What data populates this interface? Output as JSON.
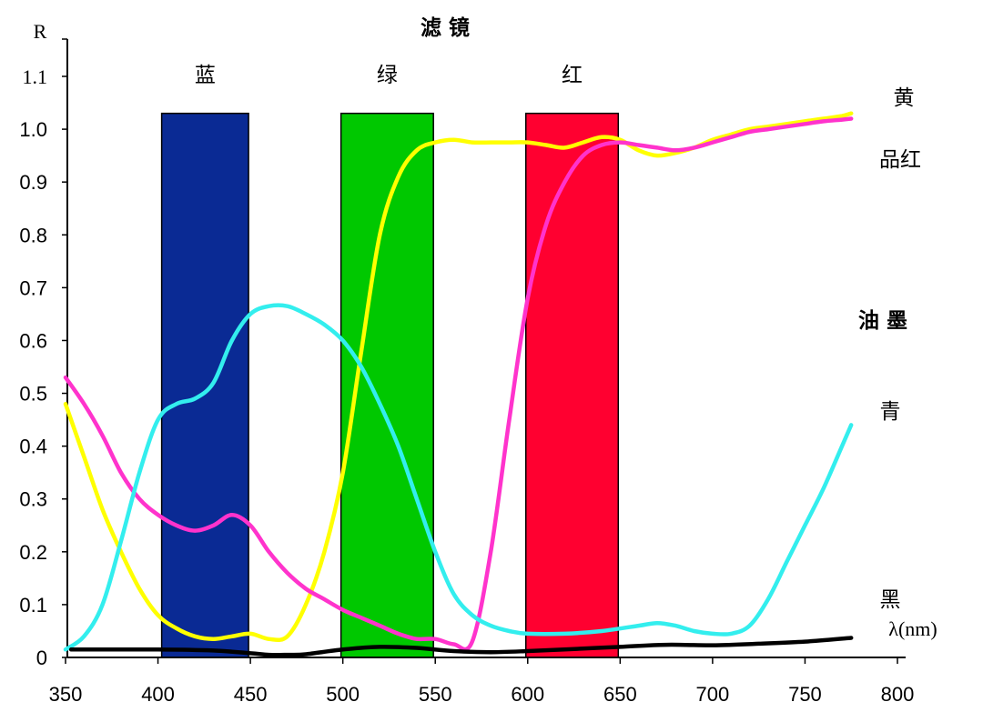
{
  "chart_data": {
    "type": "line",
    "title": "滤 镜",
    "ylabel": "R",
    "xlabel": "λ(nm)",
    "xlim": [
      350,
      800
    ],
    "ylim": [
      0,
      1.1
    ],
    "x_ticks": [
      "350",
      "400",
      "450",
      "500",
      "550",
      "600",
      "650",
      "700",
      "750",
      "800"
    ],
    "y_ticks": [
      "0",
      "0.1",
      "0.2",
      "0.3",
      "0.4",
      "0.5",
      "0.6",
      "0.7",
      "0.8",
      "0.9",
      "1.0",
      "1.1"
    ],
    "grid": false,
    "filters": [
      {
        "name": "蓝",
        "x_start": 402,
        "x_end": 449,
        "top": 1.03,
        "color": "#0a2a94"
      },
      {
        "name": "绿",
        "x_start": 499,
        "x_end": 549,
        "top": 1.03,
        "color": "#00c800"
      },
      {
        "name": "红",
        "x_start": 599,
        "x_end": 649,
        "top": 1.03,
        "color": "#ff0030"
      }
    ],
    "ink_group_label": "油 墨",
    "series": [
      {
        "name": "黄",
        "color": "#ffff00",
        "x": [
          350,
          360,
          370,
          380,
          390,
          400,
          410,
          420,
          430,
          440,
          450,
          460,
          470,
          480,
          490,
          500,
          510,
          520,
          530,
          540,
          550,
          560,
          570,
          580,
          590,
          600,
          610,
          620,
          630,
          640,
          650,
          660,
          670,
          680,
          690,
          700,
          710,
          720,
          730,
          740,
          750,
          760,
          770,
          775
        ],
        "y": [
          0.48,
          0.38,
          0.28,
          0.2,
          0.13,
          0.08,
          0.055,
          0.04,
          0.035,
          0.04,
          0.045,
          0.035,
          0.04,
          0.1,
          0.2,
          0.35,
          0.58,
          0.8,
          0.91,
          0.96,
          0.975,
          0.98,
          0.975,
          0.975,
          0.975,
          0.975,
          0.97,
          0.965,
          0.975,
          0.985,
          0.98,
          0.96,
          0.95,
          0.955,
          0.965,
          0.98,
          0.99,
          1.0,
          1.005,
          1.01,
          1.015,
          1.02,
          1.025,
          1.03
        ]
      },
      {
        "name": "品红",
        "color": "#ff33cc",
        "x": [
          350,
          360,
          370,
          380,
          390,
          400,
          410,
          420,
          430,
          440,
          450,
          460,
          470,
          480,
          490,
          500,
          510,
          520,
          530,
          540,
          550,
          560,
          570,
          580,
          590,
          600,
          610,
          620,
          630,
          640,
          650,
          660,
          670,
          680,
          690,
          700,
          710,
          720,
          730,
          740,
          750,
          760,
          770,
          775
        ],
        "y": [
          0.53,
          0.48,
          0.42,
          0.35,
          0.3,
          0.27,
          0.25,
          0.24,
          0.25,
          0.27,
          0.25,
          0.2,
          0.16,
          0.13,
          0.11,
          0.09,
          0.075,
          0.06,
          0.045,
          0.035,
          0.035,
          0.025,
          0.03,
          0.2,
          0.45,
          0.68,
          0.82,
          0.9,
          0.95,
          0.97,
          0.975,
          0.97,
          0.965,
          0.96,
          0.965,
          0.975,
          0.985,
          0.995,
          1.0,
          1.005,
          1.01,
          1.015,
          1.018,
          1.02
        ]
      },
      {
        "name": "青",
        "color": "#33eeee",
        "x": [
          350,
          360,
          370,
          380,
          390,
          400,
          410,
          420,
          430,
          440,
          450,
          460,
          470,
          480,
          490,
          500,
          510,
          520,
          530,
          540,
          550,
          560,
          570,
          580,
          590,
          600,
          620,
          640,
          660,
          670,
          680,
          690,
          700,
          710,
          720,
          730,
          740,
          750,
          760,
          770,
          775
        ],
        "y": [
          0.015,
          0.04,
          0.1,
          0.22,
          0.35,
          0.45,
          0.48,
          0.49,
          0.52,
          0.6,
          0.65,
          0.665,
          0.665,
          0.65,
          0.63,
          0.6,
          0.55,
          0.48,
          0.4,
          0.3,
          0.2,
          0.12,
          0.08,
          0.06,
          0.05,
          0.045,
          0.045,
          0.05,
          0.06,
          0.065,
          0.06,
          0.05,
          0.045,
          0.045,
          0.06,
          0.11,
          0.18,
          0.25,
          0.32,
          0.4,
          0.44
        ]
      },
      {
        "name": "黑",
        "color": "#000000",
        "x": [
          353,
          400,
          430,
          450,
          460,
          470,
          480,
          500,
          520,
          540,
          560,
          580,
          600,
          625,
          650,
          675,
          700,
          725,
          750,
          775
        ],
        "y": [
          0.015,
          0.015,
          0.013,
          0.008,
          0.005,
          0.005,
          0.006,
          0.015,
          0.02,
          0.018,
          0.012,
          0.01,
          0.012,
          0.016,
          0.02,
          0.024,
          0.023,
          0.026,
          0.03,
          0.037
        ]
      }
    ]
  }
}
